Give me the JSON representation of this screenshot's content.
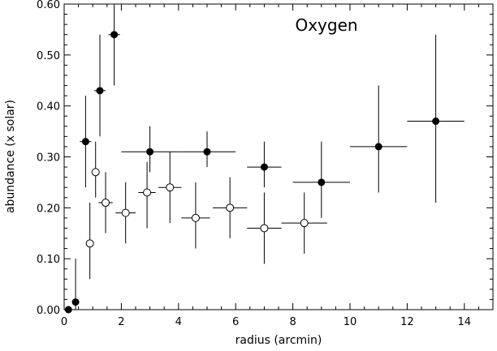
{
  "chart_data": {
    "type": "scatter",
    "title": "",
    "xlabel": "radius (arcmin)",
    "ylabel": "abundance (x solar)",
    "annotation": "Oxygen",
    "xlim": [
      0,
      15
    ],
    "ylim": [
      0.0,
      0.6
    ],
    "xticks": [
      0,
      2,
      4,
      6,
      8,
      10,
      12,
      14
    ],
    "xtick_labels": [
      "0",
      "2",
      "4",
      "6",
      "8",
      "10",
      "12",
      "14"
    ],
    "yticks": [
      0.0,
      0.1,
      0.2,
      0.3,
      0.4,
      0.5,
      0.6
    ],
    "ytick_labels": [
      "0.00",
      "0.10",
      "0.20",
      "0.30",
      "0.40",
      "0.50",
      "0.60"
    ],
    "grid": false,
    "legend": "none",
    "series": [
      {
        "marker": "filled-circle",
        "points": [
          {
            "x": 0.15,
            "xerr": 0.1,
            "y": 0.0,
            "ylo": 0.0,
            "yhi": 0.0
          },
          {
            "x": 0.4,
            "xerr": 0.1,
            "y": 0.015,
            "ylo": 0.0,
            "yhi": 0.1
          },
          {
            "x": 0.75,
            "xerr": 0.2,
            "y": 0.33,
            "ylo": 0.24,
            "yhi": 0.42
          },
          {
            "x": 1.25,
            "xerr": 0.2,
            "y": 0.43,
            "ylo": 0.34,
            "yhi": 0.54
          },
          {
            "x": 1.75,
            "xerr": 0.2,
            "y": 0.54,
            "ylo": 0.44,
            "yhi": 0.63
          },
          {
            "x": 3.0,
            "xerr": 1.0,
            "y": 0.31,
            "ylo": 0.27,
            "yhi": 0.36
          },
          {
            "x": 5.0,
            "xerr": 1.0,
            "y": 0.31,
            "ylo": 0.28,
            "yhi": 0.35
          },
          {
            "x": 7.0,
            "xerr": 0.6,
            "y": 0.28,
            "ylo": 0.24,
            "yhi": 0.33
          },
          {
            "x": 9.0,
            "xerr": 1.0,
            "y": 0.25,
            "ylo": 0.18,
            "yhi": 0.33
          },
          {
            "x": 11.0,
            "xerr": 1.0,
            "y": 0.32,
            "ylo": 0.23,
            "yhi": 0.44
          },
          {
            "x": 13.0,
            "xerr": 1.0,
            "y": 0.37,
            "ylo": 0.21,
            "yhi": 0.54
          }
        ]
      },
      {
        "marker": "open-circle",
        "points": [
          {
            "x": 0.9,
            "xerr": 0.1,
            "y": 0.13,
            "ylo": 0.06,
            "yhi": 0.21
          },
          {
            "x": 1.1,
            "xerr": 0.1,
            "y": 0.27,
            "ylo": 0.22,
            "yhi": 0.33
          },
          {
            "x": 1.45,
            "xerr": 0.25,
            "y": 0.21,
            "ylo": 0.15,
            "yhi": 0.27
          },
          {
            "x": 2.15,
            "xerr": 0.35,
            "y": 0.19,
            "ylo": 0.13,
            "yhi": 0.25
          },
          {
            "x": 2.9,
            "xerr": 0.3,
            "y": 0.23,
            "ylo": 0.16,
            "yhi": 0.29
          },
          {
            "x": 3.7,
            "xerr": 0.4,
            "y": 0.24,
            "ylo": 0.17,
            "yhi": 0.31
          },
          {
            "x": 4.6,
            "xerr": 0.5,
            "y": 0.18,
            "ylo": 0.12,
            "yhi": 0.25
          },
          {
            "x": 5.8,
            "xerr": 0.6,
            "y": 0.2,
            "ylo": 0.14,
            "yhi": 0.26
          },
          {
            "x": 7.0,
            "xerr": 0.6,
            "y": 0.16,
            "ylo": 0.09,
            "yhi": 0.23
          },
          {
            "x": 8.4,
            "xerr": 0.8,
            "y": 0.17,
            "ylo": 0.11,
            "yhi": 0.23
          }
        ]
      }
    ]
  }
}
